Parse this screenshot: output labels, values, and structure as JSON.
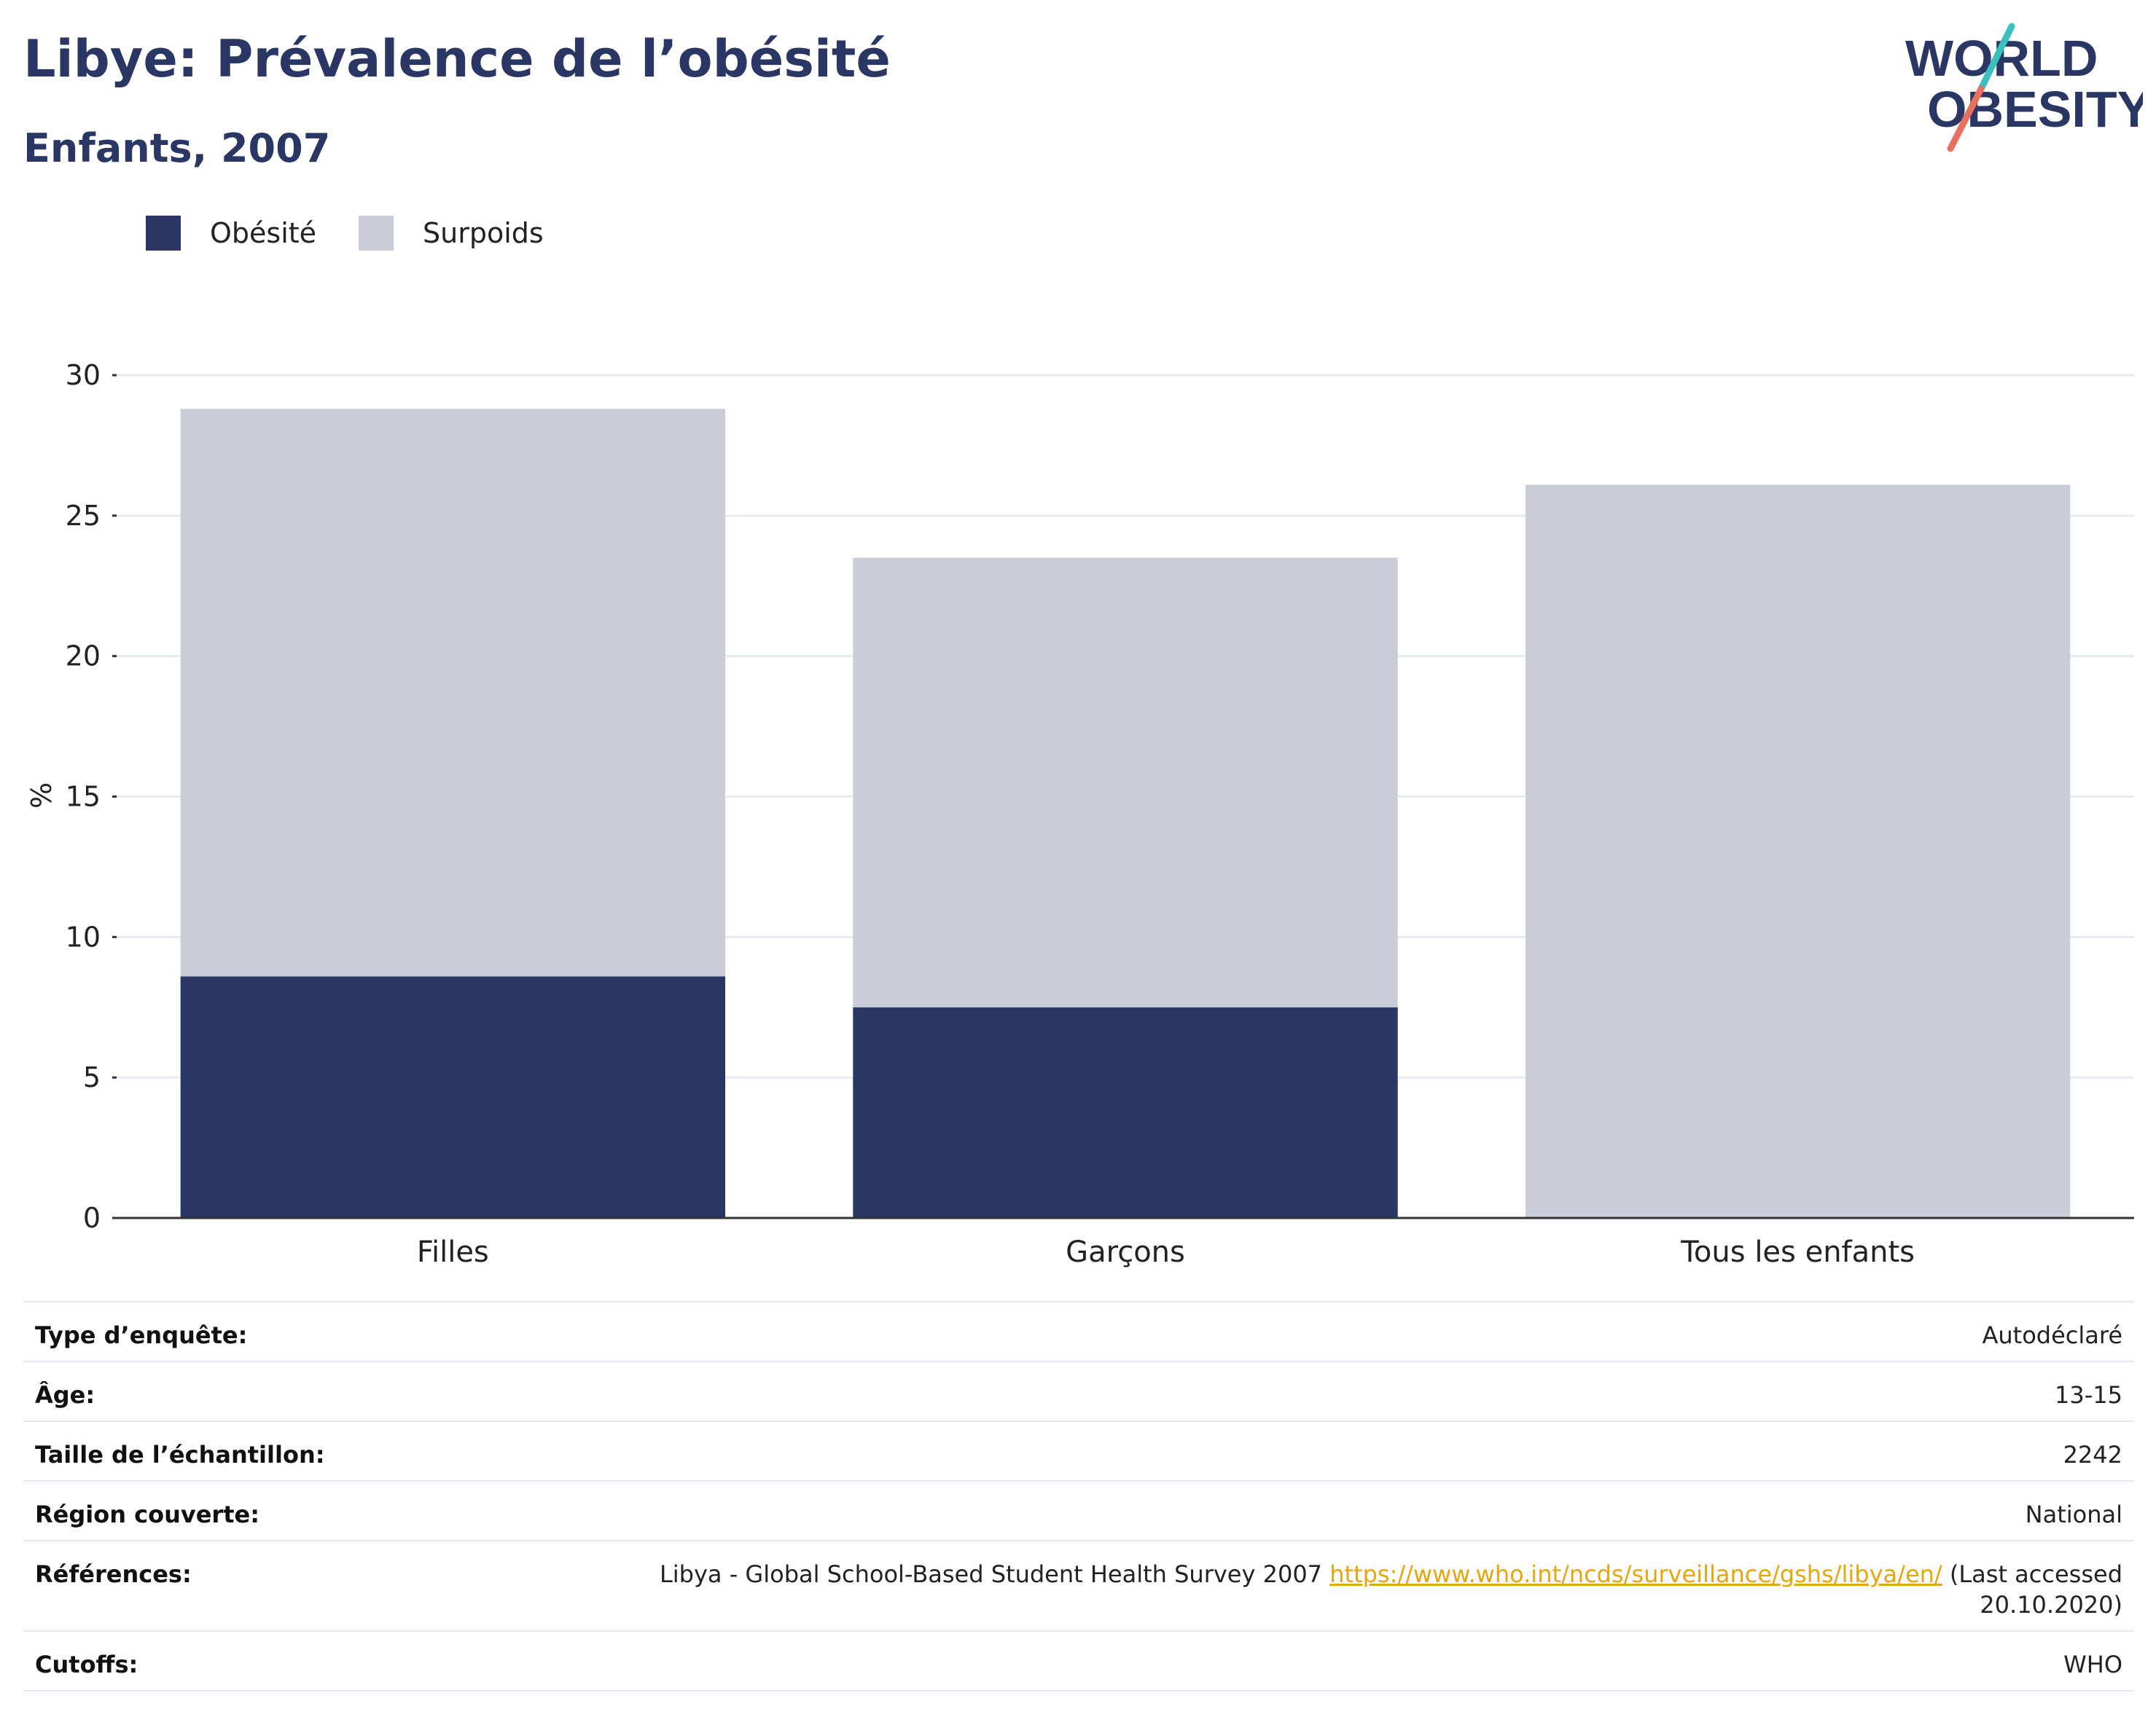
{
  "header": {
    "title": "Libye: Prévalence de l’obésité",
    "subtitle": "Enfants, 2007"
  },
  "logo": {
    "line1": "WORLD",
    "line2": "OBESITY"
  },
  "legend": [
    {
      "label": "Obésité",
      "color": "#2a3664"
    },
    {
      "label": "Surpoids",
      "color": "#cacdd8"
    }
  ],
  "chart_data": {
    "type": "bar",
    "stacked": true,
    "categories": [
      "Filles",
      "Garçons",
      "Tous les enfants"
    ],
    "series": [
      {
        "name": "Obésité",
        "color": "#2a3664",
        "values": [
          8.6,
          7.5,
          null
        ]
      },
      {
        "name": "Surpoids",
        "color": "#cacdd8",
        "values": [
          20.2,
          16.0,
          26.1
        ]
      }
    ],
    "ylabel": "%",
    "ylim": [
      0,
      30
    ],
    "yticks": [
      0,
      5,
      10,
      15,
      20,
      25,
      30
    ],
    "grid": true,
    "legend_position": "top-left"
  },
  "info": {
    "survey_type": {
      "label": "Type d’enquête:",
      "value": "Autodéclaré"
    },
    "age": {
      "label": "Âge:",
      "value": "13-15"
    },
    "sample_size": {
      "label": "Taille de l’échantillon:",
      "value": "2242"
    },
    "region": {
      "label": "Région couverte:",
      "value": "National"
    },
    "references": {
      "label": "Références:",
      "text": "Libya - Global School-Based Student Health Survey 2007",
      "link": "https://www.who.int/ncds/surveillance/gshs/libya/en/",
      "note_line1": "(Last accessed",
      "note_line2": "20.10.2020)"
    },
    "cutoffs": {
      "label": "Cutoffs:",
      "value": "WHO"
    }
  }
}
